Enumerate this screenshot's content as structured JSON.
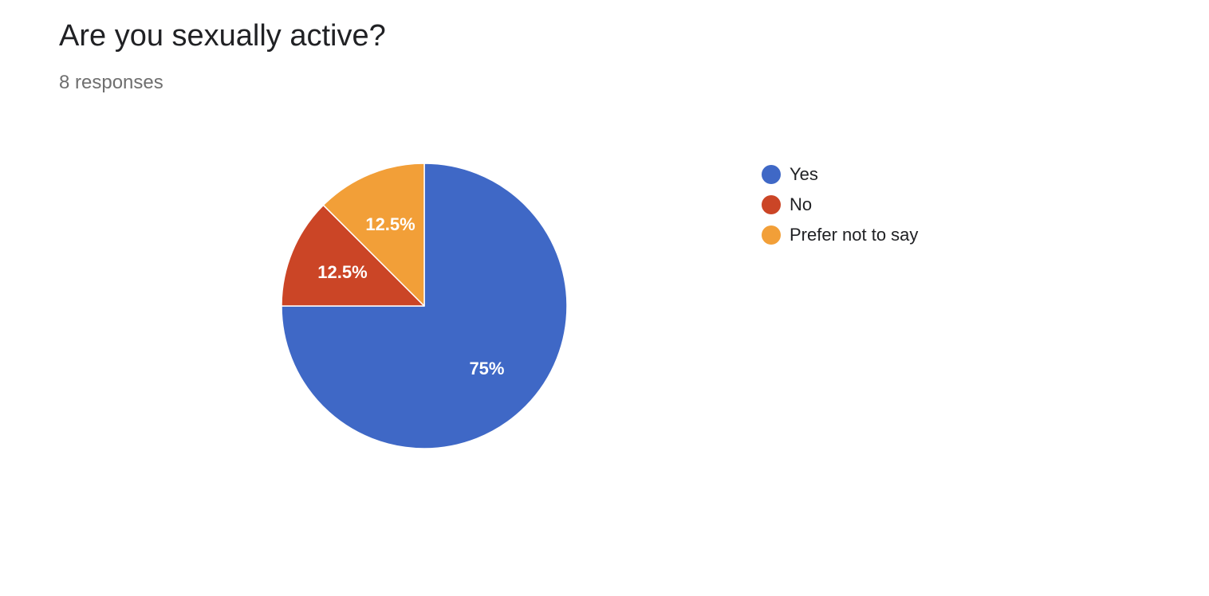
{
  "question": {
    "title": "Are you sexually active?",
    "responses": "8 responses"
  },
  "chart_data": {
    "type": "pie",
    "categories": [
      "Yes",
      "No",
      "Prefer not to say"
    ],
    "values": [
      75,
      12.5,
      12.5
    ],
    "value_labels": [
      "75%",
      "12.5%",
      "12.5%"
    ],
    "colors": [
      "#3f68c6",
      "#cb4526",
      "#f29f38"
    ],
    "start_angle_deg": 0,
    "direction": "clockwise",
    "legend_position": "right",
    "title": "",
    "xlabel": "",
    "ylabel": ""
  }
}
